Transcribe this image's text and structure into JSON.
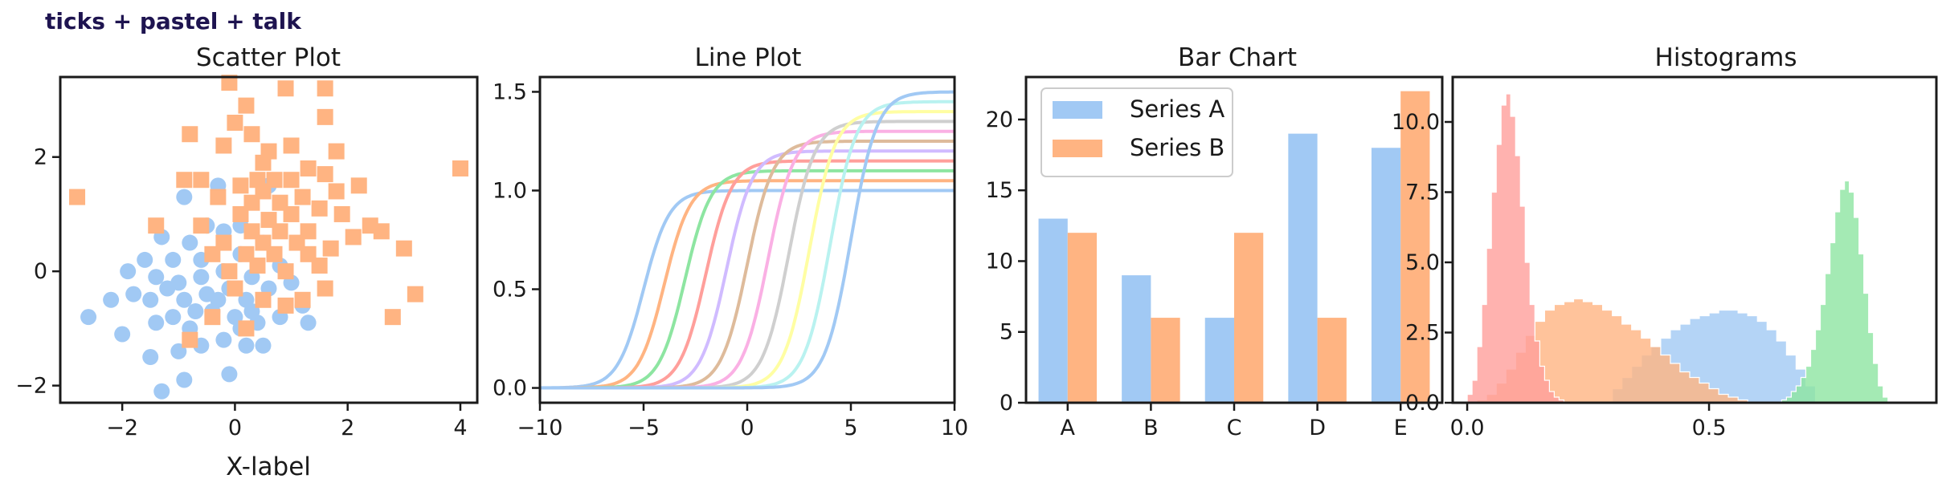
{
  "suptitle": "ticks + pastel + talk",
  "chart_data": [
    {
      "type": "scatter",
      "title": "Scatter Plot",
      "xlabel": "X-label",
      "ylabel": "",
      "xlim": [
        -3.1,
        4.3
      ],
      "ylim": [
        -2.3,
        3.4
      ],
      "xticks": [
        -2,
        0,
        2,
        4
      ],
      "yticks": [
        -2,
        0,
        2
      ],
      "grid": false,
      "series": [
        {
          "marker": "circle",
          "color": "#a1c9f4",
          "points": [
            [
              -0.3,
              1.5
            ],
            [
              -0.9,
              1.3
            ],
            [
              0.1,
              0.8
            ],
            [
              -0.5,
              0.8
            ],
            [
              -1.3,
              0.6
            ],
            [
              -0.8,
              0.5
            ],
            [
              -0.2,
              0.7
            ],
            [
              0.6,
              1.5
            ],
            [
              -1.6,
              0.2
            ],
            [
              -1.1,
              0.2
            ],
            [
              -0.6,
              0.2
            ],
            [
              0.1,
              0.3
            ],
            [
              0.5,
              0.5
            ],
            [
              -1.9,
              0.0
            ],
            [
              -1.4,
              -0.1
            ],
            [
              -1.0,
              -0.2
            ],
            [
              -0.6,
              -0.1
            ],
            [
              -0.2,
              0.0
            ],
            [
              0.3,
              -0.1
            ],
            [
              0.8,
              0.1
            ],
            [
              -2.2,
              -0.5
            ],
            [
              -1.8,
              -0.4
            ],
            [
              -1.5,
              -0.5
            ],
            [
              -1.2,
              -0.3
            ],
            [
              -0.9,
              -0.5
            ],
            [
              -0.5,
              -0.4
            ],
            [
              -0.1,
              -0.3
            ],
            [
              0.2,
              -0.5
            ],
            [
              0.6,
              -0.3
            ],
            [
              1.0,
              -0.2
            ],
            [
              -2.6,
              -0.8
            ],
            [
              -2.0,
              -1.1
            ],
            [
              -1.4,
              -0.9
            ],
            [
              -1.1,
              -0.8
            ],
            [
              -0.8,
              -1.0
            ],
            [
              -0.4,
              -0.7
            ],
            [
              0.0,
              -0.8
            ],
            [
              0.4,
              -0.9
            ],
            [
              0.8,
              -0.8
            ],
            [
              1.3,
              -0.9
            ],
            [
              -1.5,
              -1.5
            ],
            [
              -1.0,
              -1.4
            ],
            [
              -0.6,
              -1.3
            ],
            [
              -0.2,
              -1.2
            ],
            [
              0.2,
              -1.3
            ],
            [
              0.5,
              -1.3
            ],
            [
              -0.9,
              -1.9
            ],
            [
              -1.3,
              -2.1
            ],
            [
              -0.1,
              -1.8
            ],
            [
              1.2,
              -0.6
            ],
            [
              -0.3,
              -0.5
            ],
            [
              0.3,
              -0.7
            ],
            [
              -0.7,
              -0.7
            ],
            [
              0.1,
              -1.0
            ]
          ]
        },
        {
          "marker": "square",
          "color": "#ffb482",
          "points": [
            [
              -0.1,
              3.3
            ],
            [
              1.6,
              3.2
            ],
            [
              0.9,
              3.2
            ],
            [
              0.2,
              2.9
            ],
            [
              0.3,
              2.4
            ],
            [
              0.0,
              2.6
            ],
            [
              1.6,
              2.7
            ],
            [
              -0.8,
              2.4
            ],
            [
              0.6,
              2.1
            ],
            [
              1.8,
              2.1
            ],
            [
              -0.2,
              2.2
            ],
            [
              4.0,
              1.8
            ],
            [
              1.0,
              2.2
            ],
            [
              0.5,
              1.9
            ],
            [
              1.3,
              1.8
            ],
            [
              0.4,
              1.6
            ],
            [
              0.7,
              1.6
            ],
            [
              0.1,
              1.5
            ],
            [
              1.0,
              1.6
            ],
            [
              1.6,
              1.7
            ],
            [
              2.2,
              1.5
            ],
            [
              -0.9,
              1.6
            ],
            [
              -0.6,
              1.6
            ],
            [
              0.5,
              1.4
            ],
            [
              1.2,
              1.3
            ],
            [
              1.8,
              1.4
            ],
            [
              -2.8,
              1.3
            ],
            [
              -0.3,
              1.3
            ],
            [
              0.3,
              1.2
            ],
            [
              0.8,
              1.2
            ],
            [
              1.5,
              1.1
            ],
            [
              0.1,
              1.0
            ],
            [
              0.6,
              0.9
            ],
            [
              1.0,
              1.0
            ],
            [
              1.9,
              1.0
            ],
            [
              -1.4,
              0.8
            ],
            [
              -0.6,
              0.8
            ],
            [
              0.3,
              0.7
            ],
            [
              0.8,
              0.7
            ],
            [
              1.3,
              0.7
            ],
            [
              2.4,
              0.8
            ],
            [
              2.6,
              0.7
            ],
            [
              -0.2,
              0.5
            ],
            [
              0.5,
              0.5
            ],
            [
              1.1,
              0.5
            ],
            [
              1.7,
              0.4
            ],
            [
              2.1,
              0.6
            ],
            [
              -0.4,
              0.3
            ],
            [
              0.2,
              0.3
            ],
            [
              0.7,
              0.3
            ],
            [
              1.3,
              0.3
            ],
            [
              3.0,
              0.4
            ],
            [
              -0.1,
              0.0
            ],
            [
              0.4,
              0.1
            ],
            [
              0.9,
              0.0
            ],
            [
              1.5,
              0.1
            ],
            [
              0.0,
              -0.3
            ],
            [
              1.6,
              -0.3
            ],
            [
              3.2,
              -0.4
            ],
            [
              0.5,
              -0.5
            ],
            [
              1.2,
              -0.5
            ],
            [
              0.9,
              -0.6
            ],
            [
              -0.4,
              -0.8
            ],
            [
              2.8,
              -0.8
            ],
            [
              -0.8,
              -1.2
            ],
            [
              0.2,
              -1.0
            ]
          ]
        }
      ]
    },
    {
      "type": "line",
      "title": "Line Plot",
      "xlabel": "",
      "ylabel": "",
      "xlim": [
        -10,
        10
      ],
      "ylim": [
        -0.075,
        1.575
      ],
      "xticks": [
        -10,
        -5,
        0,
        5,
        10
      ],
      "yticks": [
        0.0,
        0.5,
        1.0,
        1.5
      ],
      "ytick_labels": [
        "0.0",
        "0.5",
        "1.0",
        "1.5"
      ],
      "grid": false,
      "function": "sigmoid",
      "series": [
        {
          "center": -5,
          "amplitude": 1.0,
          "color": "#a1c9f4"
        },
        {
          "center": -4,
          "amplitude": 1.05,
          "color": "#ffb482"
        },
        {
          "center": -3,
          "amplitude": 1.1,
          "color": "#8de5a1"
        },
        {
          "center": -2,
          "amplitude": 1.15,
          "color": "#ff9f9b"
        },
        {
          "center": -1,
          "amplitude": 1.2,
          "color": "#d0bbff"
        },
        {
          "center": 0,
          "amplitude": 1.25,
          "color": "#debb9b"
        },
        {
          "center": 1,
          "amplitude": 1.3,
          "color": "#fab0e4"
        },
        {
          "center": 2,
          "amplitude": 1.35,
          "color": "#cfcfcf"
        },
        {
          "center": 3,
          "amplitude": 1.4,
          "color": "#fffea3"
        },
        {
          "center": 4,
          "amplitude": 1.45,
          "color": "#b9f2f0"
        },
        {
          "center": 5,
          "amplitude": 1.5,
          "color": "#a1c9f4"
        }
      ]
    },
    {
      "type": "bar",
      "title": "Bar Chart",
      "xlabel": "",
      "ylabel": "",
      "categories": [
        "A",
        "B",
        "C",
        "D",
        "E"
      ],
      "ylim": [
        0,
        23
      ],
      "yticks": [
        0,
        5,
        10,
        15,
        20
      ],
      "grid": false,
      "legend": "upper-left",
      "series": [
        {
          "name": "Series A",
          "values": [
            13,
            9,
            6,
            19,
            18
          ],
          "color": "#a1c9f4"
        },
        {
          "name": "Series B",
          "values": [
            12,
            6,
            12,
            6,
            22
          ],
          "color": "#ffb482"
        }
      ]
    },
    {
      "type": "histogram",
      "title": "Histograms",
      "xlabel": "",
      "ylabel": "",
      "xlim": [
        -0.03,
        0.97
      ],
      "ylim": [
        0,
        11.6
      ],
      "xticks": [
        0.0,
        0.5
      ],
      "xtick_labels": [
        "0.0",
        "0.5"
      ],
      "yticks": [
        0,
        2.5,
        5.0,
        7.5,
        10.0
      ],
      "ytick_labels": [
        "0.0",
        "2.5",
        "5.0",
        "7.5",
        "10.0"
      ],
      "grid": false,
      "series": [
        {
          "color": "#a1c9f4",
          "bin_width": 0.02,
          "x_start": 0.3,
          "counts": [
            0.5,
            0.9,
            1.3,
            1.7,
            2.0,
            2.3,
            2.6,
            2.8,
            3.0,
            3.1,
            3.2,
            3.3,
            3.3,
            3.2,
            3.1,
            2.9,
            2.6,
            2.2,
            1.7,
            1.2,
            0.6
          ]
        },
        {
          "color": "#ffb482",
          "bin_width": 0.02,
          "x_start": 0.02,
          "counts": [
            0.1,
            0.3,
            0.7,
            1.2,
            1.8,
            2.4,
            2.9,
            3.3,
            3.5,
            3.6,
            3.7,
            3.6,
            3.5,
            3.3,
            3.1,
            2.8,
            2.6,
            2.3,
            2.0,
            1.7,
            1.4,
            1.1,
            0.9,
            0.7,
            0.5,
            0.3,
            0.2,
            0.1
          ]
        },
        {
          "color": "#ff9f9b",
          "bin_width": 0.01,
          "x_start": 0.0,
          "counts": [
            0.3,
            0.8,
            2.0,
            3.5,
            5.5,
            7.5,
            9.2,
            10.6,
            11.0,
            10.2,
            8.8,
            7.0,
            5.0,
            3.5,
            2.2,
            1.3,
            0.8,
            0.4,
            0.2,
            0.1
          ]
        },
        {
          "color": "#8de5a1",
          "bin_width": 0.01,
          "x_start": 0.65,
          "counts": [
            0.1,
            0.2,
            0.4,
            0.6,
            0.9,
            1.3,
            1.9,
            2.6,
            3.5,
            4.6,
            5.7,
            6.8,
            7.6,
            7.9,
            7.5,
            6.6,
            5.3,
            3.9,
            2.5,
            1.4,
            0.6,
            0.2
          ]
        }
      ]
    }
  ]
}
